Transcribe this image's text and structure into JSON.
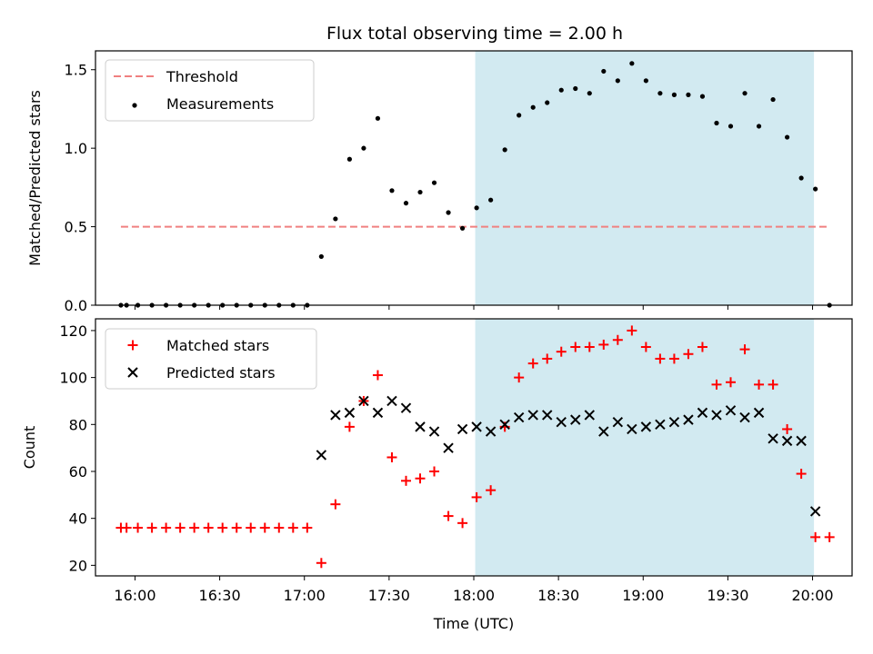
{
  "chart_data": {
    "title": "Flux total observing time = 2.00 h",
    "xlabel": "Time (UTC)",
    "x_ticks": [
      "16:00",
      "16:30",
      "17:00",
      "17:30",
      "18:00",
      "18:30",
      "19:00",
      "19:30",
      "20:00"
    ],
    "x_tick_minutes": [
      960,
      990,
      1020,
      1050,
      1080,
      1110,
      1140,
      1170,
      1200
    ],
    "xlim_minutes": [
      946,
      1214
    ],
    "shaded_region_minutes": [
      1080.5,
      1200.5
    ],
    "shaded_color": "#add8e6",
    "panels": [
      {
        "type": "scatter",
        "ylabel": "Matched/Predicted stars",
        "ylim": [
          0,
          1.62
        ],
        "y_ticks": [
          0.0,
          0.5,
          1.0,
          1.5
        ],
        "y_tick_labels": [
          "0.0",
          "0.5",
          "1.0",
          "1.5"
        ],
        "threshold": {
          "name": "Threshold",
          "value": 0.5,
          "x_range_minutes": [
            955,
            1206
          ],
          "color": "#f08080"
        },
        "series": [
          {
            "name": "Measurements",
            "marker": "dot",
            "color": "#000000",
            "x": [
              955,
              957,
              961,
              966,
              971,
              976,
              981,
              986,
              991,
              996,
              1001,
              1006,
              1011,
              1016,
              1021,
              1026,
              1031,
              1036,
              1041,
              1046,
              1051,
              1056,
              1061,
              1066,
              1071,
              1076,
              1081,
              1086,
              1091,
              1096,
              1101,
              1106,
              1111,
              1116,
              1121,
              1126,
              1131,
              1136,
              1141,
              1146,
              1151,
              1156,
              1161,
              1166,
              1171,
              1176,
              1181,
              1186,
              1191,
              1196,
              1201,
              1206
            ],
            "y": [
              0.0,
              0.0,
              0.0,
              0.0,
              0.0,
              0.0,
              0.0,
              0.0,
              0.0,
              0.0,
              0.0,
              0.0,
              0.0,
              0.0,
              0.0,
              0.31,
              0.55,
              0.93,
              1.0,
              1.19,
              0.73,
              0.65,
              0.72,
              0.78,
              0.59,
              0.49,
              0.62,
              0.67,
              0.99,
              1.21,
              1.26,
              1.29,
              1.37,
              1.38,
              1.35,
              1.49,
              1.43,
              1.54,
              1.43,
              1.35,
              1.34,
              1.34,
              1.33,
              1.16,
              1.14,
              1.35,
              1.14,
              1.31,
              1.07,
              0.81,
              0.74,
              0.0
            ]
          }
        ]
      },
      {
        "type": "scatter",
        "ylabel": "Count",
        "ylim": [
          15.5,
          125
        ],
        "y_ticks": [
          20,
          40,
          60,
          80,
          100,
          120
        ],
        "y_tick_labels": [
          "20",
          "40",
          "60",
          "80",
          "100",
          "120"
        ],
        "series": [
          {
            "name": "Matched stars",
            "marker": "plus",
            "color": "#ff0000",
            "x": [
              955,
              957,
              961,
              966,
              971,
              976,
              981,
              986,
              991,
              996,
              1001,
              1006,
              1011,
              1016,
              1021,
              1026,
              1031,
              1036,
              1041,
              1046,
              1051,
              1056,
              1061,
              1066,
              1071,
              1076,
              1081,
              1086,
              1091,
              1096,
              1101,
              1106,
              1111,
              1116,
              1121,
              1126,
              1131,
              1136,
              1141,
              1146,
              1151,
              1156,
              1161,
              1166,
              1171,
              1176,
              1181,
              1186,
              1191,
              1196,
              1201,
              1206
            ],
            "y": [
              36,
              36,
              36,
              36,
              36,
              36,
              36,
              36,
              36,
              36,
              36,
              36,
              36,
              36,
              36,
              21,
              46,
              79,
              90,
              101,
              66,
              56,
              57,
              60,
              41,
              38,
              49,
              52,
              79,
              100,
              106,
              108,
              111,
              113,
              113,
              114,
              116,
              120,
              113,
              108,
              108,
              110,
              113,
              97,
              98,
              112,
              97,
              97,
              78,
              59,
              32,
              32
            ]
          },
          {
            "name": "Predicted stars",
            "marker": "x",
            "color": "#000000",
            "x": [
              1026,
              1031,
              1036,
              1041,
              1046,
              1051,
              1056,
              1061,
              1066,
              1071,
              1076,
              1081,
              1086,
              1091,
              1096,
              1101,
              1106,
              1111,
              1116,
              1121,
              1126,
              1131,
              1136,
              1141,
              1146,
              1151,
              1156,
              1161,
              1166,
              1171,
              1176,
              1181,
              1186,
              1191,
              1196,
              1201
            ],
            "y": [
              67,
              84,
              85,
              90,
              85,
              90,
              87,
              79,
              77,
              70,
              78,
              79,
              77,
              80,
              83,
              84,
              84,
              81,
              82,
              84,
              77,
              81,
              78,
              79,
              80,
              81,
              82,
              85,
              84,
              86,
              83,
              85,
              74,
              73,
              73,
              43
            ]
          }
        ]
      }
    ]
  }
}
